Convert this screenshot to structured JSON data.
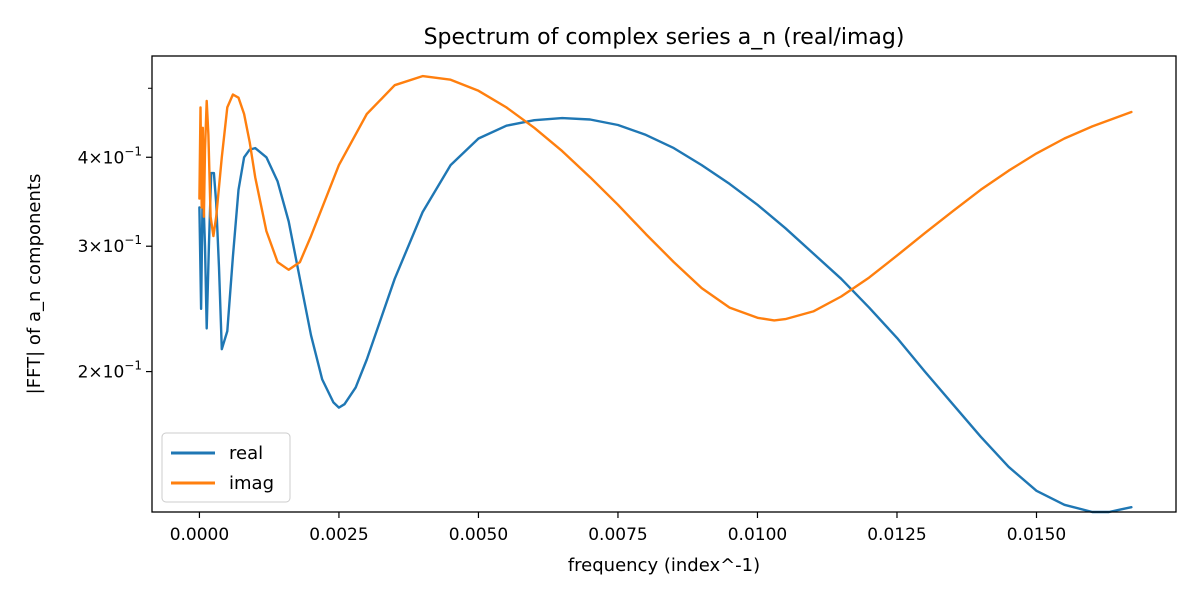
{
  "chart_data": {
    "type": "line",
    "title": "Spectrum of complex series a_n (real/imag)",
    "xlabel": "frequency (index^-1)",
    "ylabel": "|FFT| of a_n components",
    "xlim": [
      -0.00085,
      0.0175
    ],
    "ylim": [
      0.127,
      0.555
    ],
    "yscale": "log",
    "grid": false,
    "legend_position": "lower-left",
    "x_ticks": [
      {
        "value": 0.0,
        "label": "0.0000"
      },
      {
        "value": 0.0025,
        "label": "0.0025"
      },
      {
        "value": 0.005,
        "label": "0.0050"
      },
      {
        "value": 0.0075,
        "label": "0.0075"
      },
      {
        "value": 0.01,
        "label": "0.0100"
      },
      {
        "value": 0.0125,
        "label": "0.0125"
      },
      {
        "value": 0.015,
        "label": "0.0150"
      }
    ],
    "y_ticks": [
      {
        "value": 0.2,
        "mant": "2",
        "exp": "−1"
      },
      {
        "value": 0.3,
        "mant": "3",
        "exp": "−1"
      },
      {
        "value": 0.4,
        "mant": "4",
        "exp": "−1"
      }
    ],
    "y_minor_ticks": [
      0.5
    ],
    "series": [
      {
        "name": "real",
        "color": "#1f77b4",
        "points": [
          [
            0.0,
            0.34
          ],
          [
            3e-05,
            0.245
          ],
          [
            6e-05,
            0.37
          ],
          [
            0.0001,
            0.3
          ],
          [
            0.00013,
            0.23
          ],
          [
            0.00017,
            0.3
          ],
          [
            0.00021,
            0.38
          ],
          [
            0.00026,
            0.38
          ],
          [
            0.0003,
            0.345
          ],
          [
            0.00035,
            0.28
          ],
          [
            0.0004,
            0.215
          ],
          [
            0.0005,
            0.228
          ],
          [
            0.0006,
            0.29
          ],
          [
            0.0007,
            0.36
          ],
          [
            0.0008,
            0.4
          ],
          [
            0.0009,
            0.41
          ],
          [
            0.001,
            0.412
          ],
          [
            0.0012,
            0.4
          ],
          [
            0.0014,
            0.37
          ],
          [
            0.0016,
            0.325
          ],
          [
            0.0018,
            0.27
          ],
          [
            0.002,
            0.225
          ],
          [
            0.0022,
            0.195
          ],
          [
            0.0024,
            0.181
          ],
          [
            0.0025,
            0.178
          ],
          [
            0.0026,
            0.18
          ],
          [
            0.0028,
            0.19
          ],
          [
            0.003,
            0.208
          ],
          [
            0.0035,
            0.27
          ],
          [
            0.004,
            0.335
          ],
          [
            0.0045,
            0.39
          ],
          [
            0.005,
            0.425
          ],
          [
            0.0055,
            0.443
          ],
          [
            0.006,
            0.451
          ],
          [
            0.0065,
            0.454
          ],
          [
            0.007,
            0.452
          ],
          [
            0.0075,
            0.444
          ],
          [
            0.008,
            0.43
          ],
          [
            0.0085,
            0.412
          ],
          [
            0.009,
            0.39
          ],
          [
            0.0095,
            0.367
          ],
          [
            0.01,
            0.343
          ],
          [
            0.0105,
            0.318
          ],
          [
            0.011,
            0.293
          ],
          [
            0.0115,
            0.27
          ],
          [
            0.012,
            0.246
          ],
          [
            0.0125,
            0.223
          ],
          [
            0.013,
            0.2
          ],
          [
            0.0135,
            0.18
          ],
          [
            0.014,
            0.162
          ],
          [
            0.0145,
            0.147
          ],
          [
            0.015,
            0.136
          ],
          [
            0.0155,
            0.13
          ],
          [
            0.016,
            0.127
          ],
          [
            0.0163,
            0.127
          ],
          [
            0.0165,
            0.128
          ],
          [
            0.0167,
            0.129
          ]
        ]
      },
      {
        "name": "imag",
        "color": "#ff7f0e",
        "points": [
          [
            0.0,
            0.35
          ],
          [
            2e-05,
            0.47
          ],
          [
            4e-05,
            0.34
          ],
          [
            6e-05,
            0.44
          ],
          [
            8e-05,
            0.33
          ],
          [
            0.0001,
            0.41
          ],
          [
            0.00013,
            0.48
          ],
          [
            0.00016,
            0.43
          ],
          [
            0.0002,
            0.33
          ],
          [
            0.00025,
            0.31
          ],
          [
            0.0003,
            0.33
          ],
          [
            0.0004,
            0.4
          ],
          [
            0.0005,
            0.47
          ],
          [
            0.0006,
            0.49
          ],
          [
            0.0007,
            0.485
          ],
          [
            0.0008,
            0.46
          ],
          [
            0.0009,
            0.42
          ],
          [
            0.001,
            0.375
          ],
          [
            0.0012,
            0.315
          ],
          [
            0.0014,
            0.285
          ],
          [
            0.0016,
            0.278
          ],
          [
            0.0018,
            0.285
          ],
          [
            0.002,
            0.31
          ],
          [
            0.0025,
            0.39
          ],
          [
            0.003,
            0.46
          ],
          [
            0.0035,
            0.505
          ],
          [
            0.004,
            0.52
          ],
          [
            0.0045,
            0.514
          ],
          [
            0.005,
            0.496
          ],
          [
            0.0055,
            0.47
          ],
          [
            0.006,
            0.44
          ],
          [
            0.0065,
            0.408
          ],
          [
            0.007,
            0.375
          ],
          [
            0.0075,
            0.343
          ],
          [
            0.008,
            0.312
          ],
          [
            0.0085,
            0.285
          ],
          [
            0.009,
            0.262
          ],
          [
            0.0095,
            0.246
          ],
          [
            0.01,
            0.238
          ],
          [
            0.0103,
            0.236
          ],
          [
            0.0105,
            0.237
          ],
          [
            0.011,
            0.243
          ],
          [
            0.0115,
            0.255
          ],
          [
            0.012,
            0.271
          ],
          [
            0.0125,
            0.291
          ],
          [
            0.013,
            0.313
          ],
          [
            0.0135,
            0.336
          ],
          [
            0.014,
            0.36
          ],
          [
            0.0145,
            0.383
          ],
          [
            0.015,
            0.405
          ],
          [
            0.0155,
            0.425
          ],
          [
            0.016,
            0.442
          ],
          [
            0.0167,
            0.463
          ]
        ]
      }
    ]
  }
}
